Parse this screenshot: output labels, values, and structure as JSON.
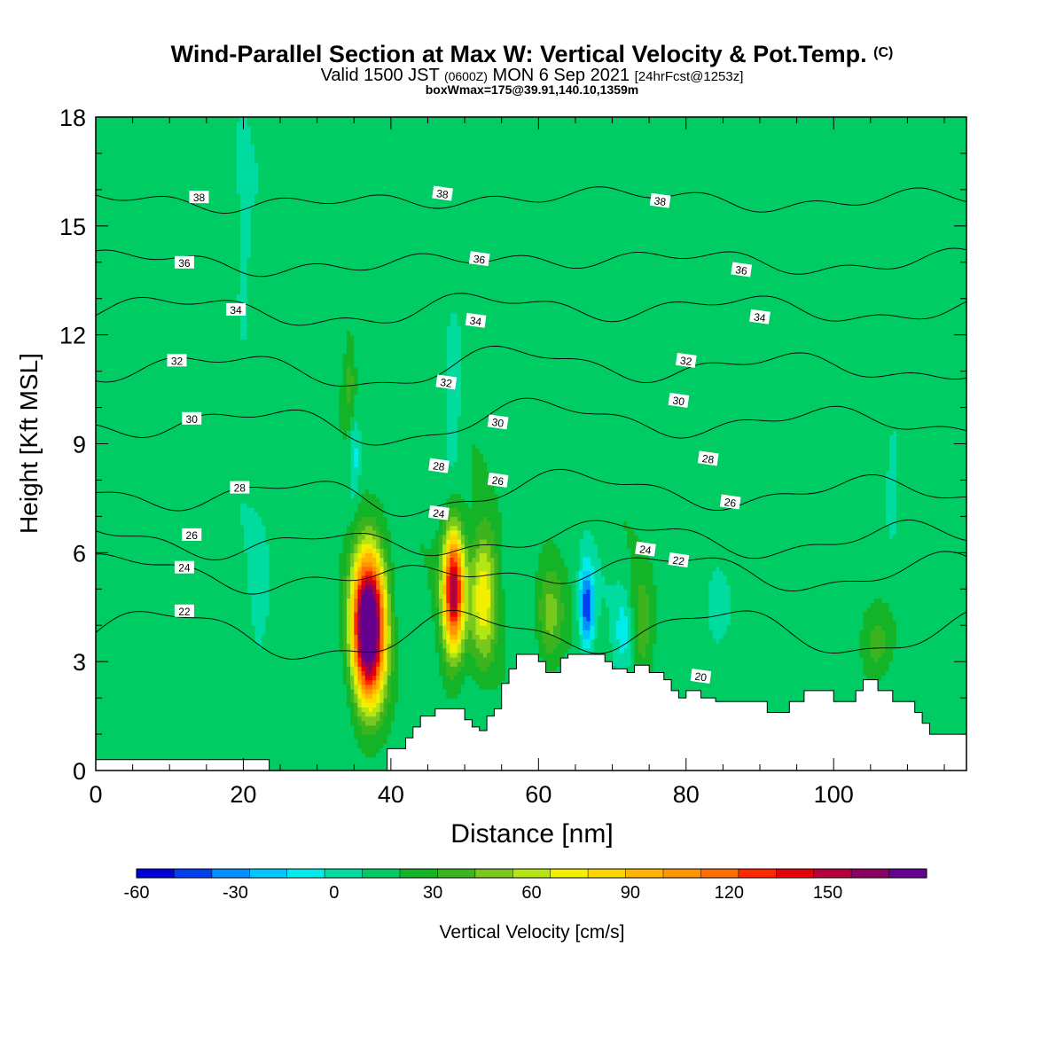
{
  "header": {
    "title": "Wind-Parallel Section at Max W: Vertical Velocity & Pot.Temp.",
    "title_mark": "(C)",
    "valid_prefix": "Valid 1500 JST",
    "valid_utc": "(0600Z)",
    "valid_date": "MON 6 Sep 2021",
    "forecast": "[24hrFcst@1253z]",
    "subtitle": "boxWmax=175@39.91,140.10,1359m"
  },
  "chart_data": {
    "type": "heatmap",
    "title": "Wind-Parallel Section at Max W: Vertical Velocity & Pot.Temp.",
    "xlabel": "Distance [nm]",
    "ylabel": "Height [Kft MSL]",
    "xlim": [
      0,
      118
    ],
    "ylim": [
      0,
      18
    ],
    "x_ticks": [
      0,
      20,
      40,
      60,
      80,
      100
    ],
    "y_ticks": [
      0,
      3,
      6,
      9,
      12,
      15,
      18
    ],
    "fill_variable": "Vertical Velocity [cm/s]",
    "contour_variable": "potential temperature",
    "background_w": 5,
    "updraft_cores": [
      {
        "x": 37,
        "z": 4.0,
        "w_max": 175,
        "sx": 2.2,
        "sz": 2.0
      },
      {
        "x": 48.5,
        "z": 5.0,
        "w_max": 125,
        "sx": 1.5,
        "sz": 1.7
      },
      {
        "x": 52.5,
        "z": 4.8,
        "w_max": 55,
        "sx": 1.8,
        "sz": 1.8
      },
      {
        "x": 61.5,
        "z": 4.2,
        "w_max": 30,
        "sx": 1.8,
        "sz": 1.4
      },
      {
        "x": 74,
        "z": 4.0,
        "w_max": 22,
        "sx": 1.5,
        "sz": 1.5
      },
      {
        "x": 106,
        "z": 3.5,
        "w_max": 22,
        "sx": 2.0,
        "sz": 1.0
      },
      {
        "x": 34.5,
        "z": 10.8,
        "w_max": 20,
        "sx": 0.9,
        "sz": 1.6
      }
    ],
    "downdraft_cores": [
      {
        "x": 66.5,
        "z": 4.5,
        "w_min": -55,
        "sx": 1.0,
        "sz": 1.1
      },
      {
        "x": 71.5,
        "z": 3.8,
        "w_min": -18,
        "sx": 1.3,
        "sz": 1.2
      },
      {
        "x": 35,
        "z": 8.7,
        "w_min": -22,
        "sx": 0.8,
        "sz": 1.2
      },
      {
        "x": 48.5,
        "z": 10.5,
        "w_min": -18,
        "sx": 1.0,
        "sz": 2.0
      },
      {
        "x": 20,
        "z": 14.5,
        "w_min": -15,
        "sx": 1.0,
        "sz": 2.5
      },
      {
        "x": 22,
        "z": 5.0,
        "w_min": -10,
        "sx": 1.4,
        "sz": 2.0
      },
      {
        "x": 84,
        "z": 4.3,
        "w_min": -12,
        "sx": 1.5,
        "sz": 1.2
      },
      {
        "x": 108,
        "z": 8.5,
        "w_min": -12,
        "sx": 1.0,
        "sz": 2.0
      }
    ],
    "terrain": {
      "x": [
        0,
        23,
        23.5,
        39,
        39.5,
        41,
        42,
        43,
        44,
        45,
        46,
        47,
        49,
        50,
        51,
        52,
        53,
        54,
        55,
        56,
        57,
        58,
        59,
        60,
        61,
        62,
        63,
        64,
        65,
        66,
        67,
        68,
        69,
        70,
        71,
        72,
        73,
        74,
        75,
        76,
        77,
        78,
        79,
        80,
        81,
        82,
        83,
        84,
        85,
        86,
        87,
        88,
        89,
        90,
        91,
        92,
        93,
        94,
        95,
        96,
        97,
        98,
        99,
        100,
        101,
        102,
        103,
        104,
        105,
        106,
        107,
        108,
        109,
        110,
        111,
        112,
        113,
        114,
        115,
        116,
        117,
        118
      ],
      "z": [
        0.3,
        0.3,
        0.0,
        0.0,
        0.6,
        0.6,
        0.9,
        1.2,
        1.5,
        1.5,
        1.7,
        1.7,
        1.7,
        1.4,
        1.2,
        1.1,
        1.5,
        1.7,
        2.4,
        2.8,
        3.2,
        3.2,
        3.2,
        3.0,
        2.7,
        2.7,
        3.1,
        3.2,
        3.2,
        3.2,
        3.2,
        3.2,
        3.0,
        2.8,
        2.8,
        2.7,
        2.9,
        2.9,
        2.7,
        2.7,
        2.5,
        2.2,
        2.0,
        2.2,
        2.2,
        2.0,
        2.0,
        1.9,
        1.9,
        1.9,
        1.9,
        1.9,
        1.9,
        1.9,
        1.6,
        1.6,
        1.6,
        1.9,
        1.9,
        2.2,
        2.2,
        2.2,
        2.2,
        1.9,
        1.9,
        1.9,
        2.2,
        2.5,
        2.5,
        2.2,
        2.2,
        1.9,
        1.9,
        1.9,
        1.6,
        1.3,
        1.0,
        1.0,
        1.0,
        1.0,
        1.0,
        0.7
      ]
    },
    "isentropes": [
      {
        "base": 3.8,
        "amp": 0.6,
        "label": "22",
        "lx": 12,
        "lz": 4.4
      },
      {
        "base": 5.45,
        "amp": 0.45,
        "label": "24",
        "lx": 12,
        "lz": 5.6
      },
      {
        "base": 6.35,
        "amp": 0.4,
        "label": "26",
        "lx": 13,
        "lz": 6.5
      },
      {
        "base": 7.65,
        "amp": 0.35,
        "label": "28",
        "lx": 19.5,
        "lz": 7.8
      },
      {
        "base": 9.6,
        "amp": 0.3,
        "label": "30",
        "lx": 13,
        "lz": 9.7
      },
      {
        "base": 11.1,
        "amp": 0.3,
        "label": "32",
        "lx": 11,
        "lz": 11.3
      },
      {
        "base": 12.7,
        "amp": 0.3,
        "label": "34",
        "lx": 19,
        "lz": 12.7
      },
      {
        "base": 14.0,
        "amp": 0.25,
        "label": "36",
        "lx": 12,
        "lz": 14.0
      },
      {
        "base": 15.7,
        "amp": 0.2,
        "label": "38",
        "lx": 14,
        "lz": 15.8
      }
    ],
    "isentrope_labels": [
      {
        "label": "38",
        "x": 47,
        "z": 15.9
      },
      {
        "label": "38",
        "x": 76.5,
        "z": 15.7
      },
      {
        "label": "36",
        "x": 52,
        "z": 14.1
      },
      {
        "label": "36",
        "x": 87.5,
        "z": 13.8
      },
      {
        "label": "34",
        "x": 51.5,
        "z": 12.4
      },
      {
        "label": "34",
        "x": 90,
        "z": 12.5
      },
      {
        "label": "32",
        "x": 47.5,
        "z": 10.7
      },
      {
        "label": "32",
        "x": 80,
        "z": 11.3
      },
      {
        "label": "30",
        "x": 54.5,
        "z": 9.6
      },
      {
        "label": "30",
        "x": 79,
        "z": 10.2
      },
      {
        "label": "28",
        "x": 46.5,
        "z": 8.4
      },
      {
        "label": "28",
        "x": 83,
        "z": 8.6
      },
      {
        "label": "26",
        "x": 54.5,
        "z": 8.0
      },
      {
        "label": "26",
        "x": 86,
        "z": 7.4
      },
      {
        "label": "24",
        "x": 46.5,
        "z": 7.1
      },
      {
        "label": "24",
        "x": 74.5,
        "z": 6.1
      },
      {
        "label": "22",
        "x": 79,
        "z": 5.8
      },
      {
        "label": "20",
        "x": 82,
        "z": 2.6
      }
    ]
  },
  "colorbar": {
    "label": "Vertical Velocity [cm/s]",
    "min": -60,
    "max": 170,
    "step": 10,
    "tick_values": [
      -60,
      -30,
      0,
      30,
      60,
      90,
      120,
      150
    ],
    "tick_labels": [
      "-60",
      "-30",
      "0",
      "30",
      "60",
      "90",
      "120",
      "150"
    ],
    "colors": [
      "#0000d8",
      "#0040f0",
      "#0090ff",
      "#00c8ff",
      "#00ecec",
      "#00dca0",
      "#00cc64",
      "#14b428",
      "#3cb41e",
      "#78c81e",
      "#b4e614",
      "#f0f000",
      "#ffd700",
      "#ffb400",
      "#ff9600",
      "#ff6e00",
      "#ff2800",
      "#e6000a",
      "#b4003c",
      "#8c0064",
      "#640090"
    ]
  }
}
